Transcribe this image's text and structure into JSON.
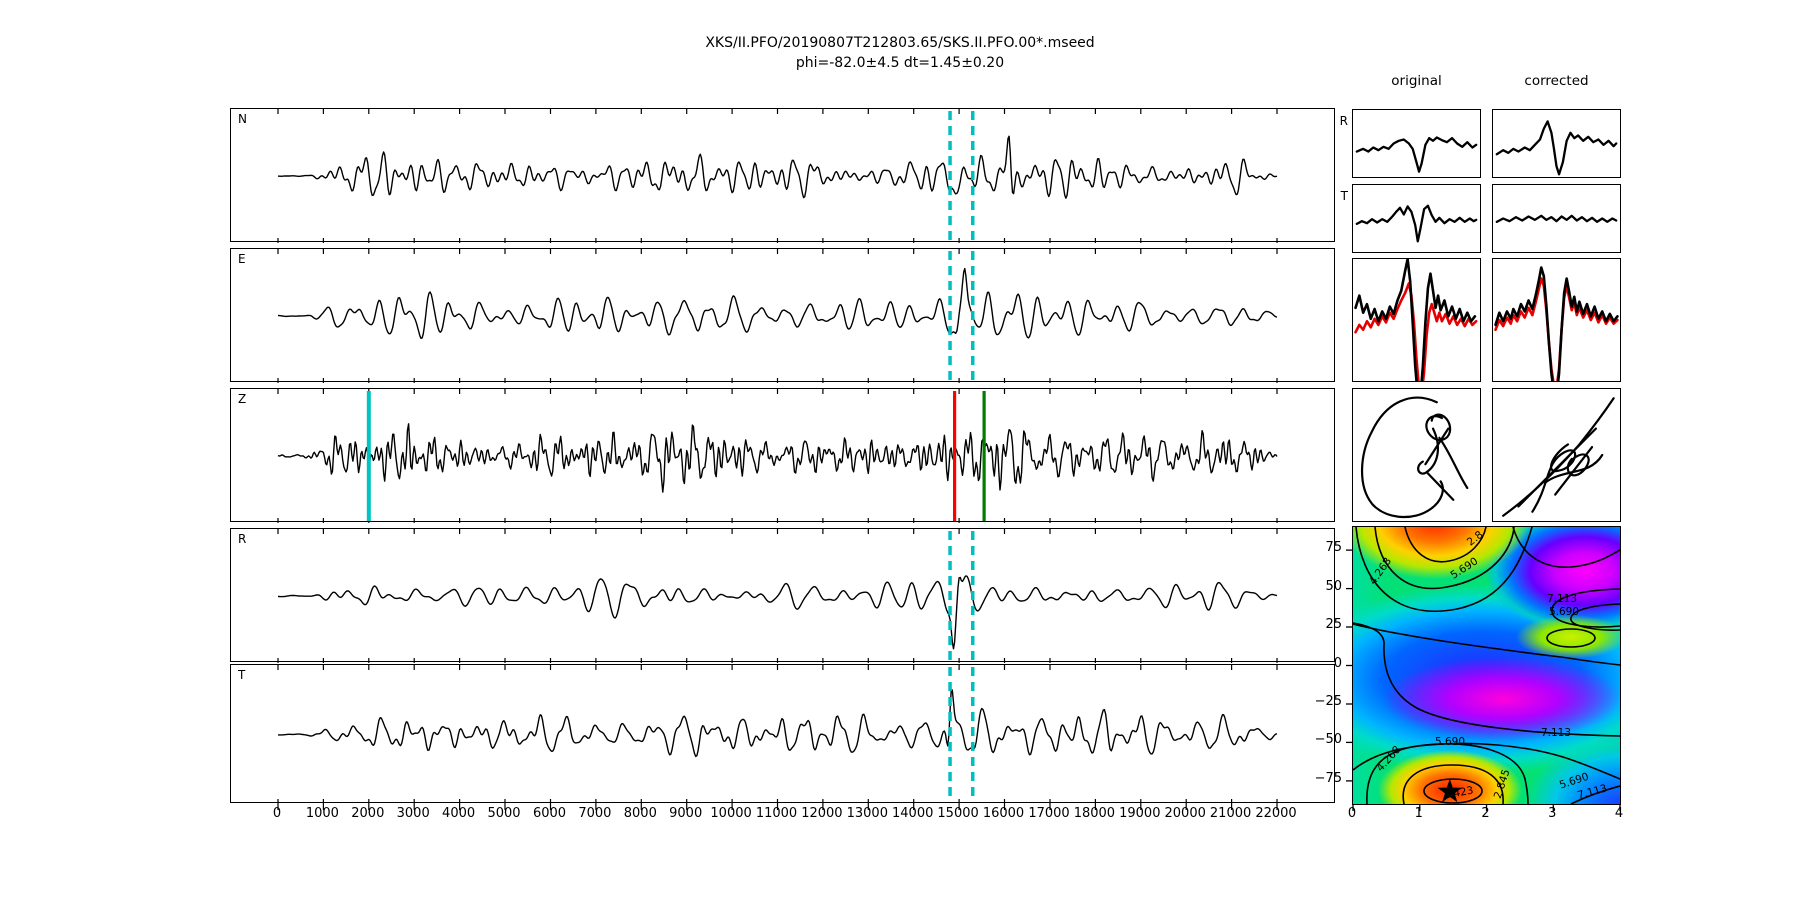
{
  "title": {
    "line1": "XKS/II.PFO/20190807T212803.65/SKS.II.PFO.00*.mseed",
    "line2": "phi=-82.0±4.5 dt=1.45±0.20"
  },
  "comparison": {
    "col_headers": [
      "original",
      "corrected"
    ],
    "row_labels": [
      "R",
      "T"
    ]
  },
  "chart_data": {
    "type": "seismogram-panels + splitting misfit contour",
    "seismograms": {
      "xaxis_range": [
        0,
        22000
      ],
      "xaxis_tick_step": 1000,
      "xaxis_tick_labels": [
        "0",
        "1000",
        "2000",
        "3000",
        "4000",
        "5000",
        "6000",
        "7000",
        "8000",
        "9000",
        "10000",
        "11000",
        "12000",
        "13000",
        "14000",
        "15000",
        "16000",
        "17000",
        "18000",
        "19000",
        "20000",
        "21000",
        "22000"
      ],
      "panels": [
        {
          "label": "N",
          "lines": [
            {
              "x": 14800,
              "color": "#00bfbf",
              "style": "dashed",
              "w": 3.5
            },
            {
              "x": 15300,
              "color": "#00bfbf",
              "style": "dashed",
              "w": 3.5
            }
          ]
        },
        {
          "label": "E",
          "lines": [
            {
              "x": 14800,
              "color": "#00bfbf",
              "style": "dashed",
              "w": 3.5
            },
            {
              "x": 15300,
              "color": "#00bfbf",
              "style": "dashed",
              "w": 3.5
            }
          ]
        },
        {
          "label": "Z",
          "lines": [
            {
              "x": 2000,
              "color": "#00c4c4",
              "style": "solid",
              "w": 4
            },
            {
              "x": 14900,
              "color": "#ff0000",
              "style": "solid",
              "w": 3.2
            },
            {
              "x": 15550,
              "color": "#007d00",
              "style": "solid",
              "w": 3.2
            }
          ]
        },
        {
          "label": "R",
          "lines": [
            {
              "x": 14800,
              "color": "#00bfbf",
              "style": "dashed",
              "w": 3.5
            },
            {
              "x": 15300,
              "color": "#00bfbf",
              "style": "dashed",
              "w": 3.5
            }
          ]
        },
        {
          "label": "T",
          "lines": [
            {
              "x": 14800,
              "color": "#00bfbf",
              "style": "dashed",
              "w": 3.5
            },
            {
              "x": 15300,
              "color": "#00bfbf",
              "style": "dashed",
              "w": 3.5
            }
          ]
        }
      ]
    },
    "splitting_result": {
      "phi_deg": -82.0,
      "phi_err": 4.5,
      "dt_s": 1.45,
      "dt_err": 0.2
    },
    "contour": {
      "xticks_dt": [
        0,
        1,
        2,
        3,
        4
      ],
      "xtick_labels": [
        "0",
        "1",
        "2",
        "3",
        "4"
      ],
      "yticks_phi": [
        75,
        50,
        25,
        0,
        -25,
        -50,
        -75
      ],
      "ytick_labels": [
        "75",
        "50",
        "25",
        "0",
        "−25",
        "−50",
        "−75"
      ],
      "x_range": [
        0,
        4
      ],
      "y_range": [
        -90,
        90
      ],
      "levels": [
        1.423,
        2.845,
        4.268,
        5.69,
        7.113
      ],
      "best": {
        "dt": 1.45,
        "phi": -82
      },
      "star_marker": "★",
      "clabels": [
        {
          "text": "2.8",
          "x": 124,
          "y": 14,
          "rot": -38
        },
        {
          "text": "4.268",
          "x": 30,
          "y": 46,
          "rot": -55
        },
        {
          "text": "5.690",
          "x": 113,
          "y": 44,
          "rot": -33
        },
        {
          "text": "7.113",
          "x": 209,
          "y": 75,
          "rot": 0
        },
        {
          "text": "5.690",
          "x": 211,
          "y": 88,
          "rot": 0
        },
        {
          "text": "7.113",
          "x": 203,
          "y": 209,
          "rot": 0
        },
        {
          "text": "5.690",
          "x": 97,
          "y": 218,
          "rot": 0
        },
        {
          "text": "4.268",
          "x": 38,
          "y": 234,
          "rot": -48
        },
        {
          "text": "2.845",
          "x": 152,
          "y": 258,
          "rot": -72
        },
        {
          "text": "5.690",
          "x": 222,
          "y": 257,
          "rot": -18
        },
        {
          "text": "7.113",
          "x": 240,
          "y": 268,
          "rot": -15
        },
        {
          "text": "1.423",
          "x": 106,
          "y": 269,
          "rot": -10
        }
      ]
    }
  }
}
